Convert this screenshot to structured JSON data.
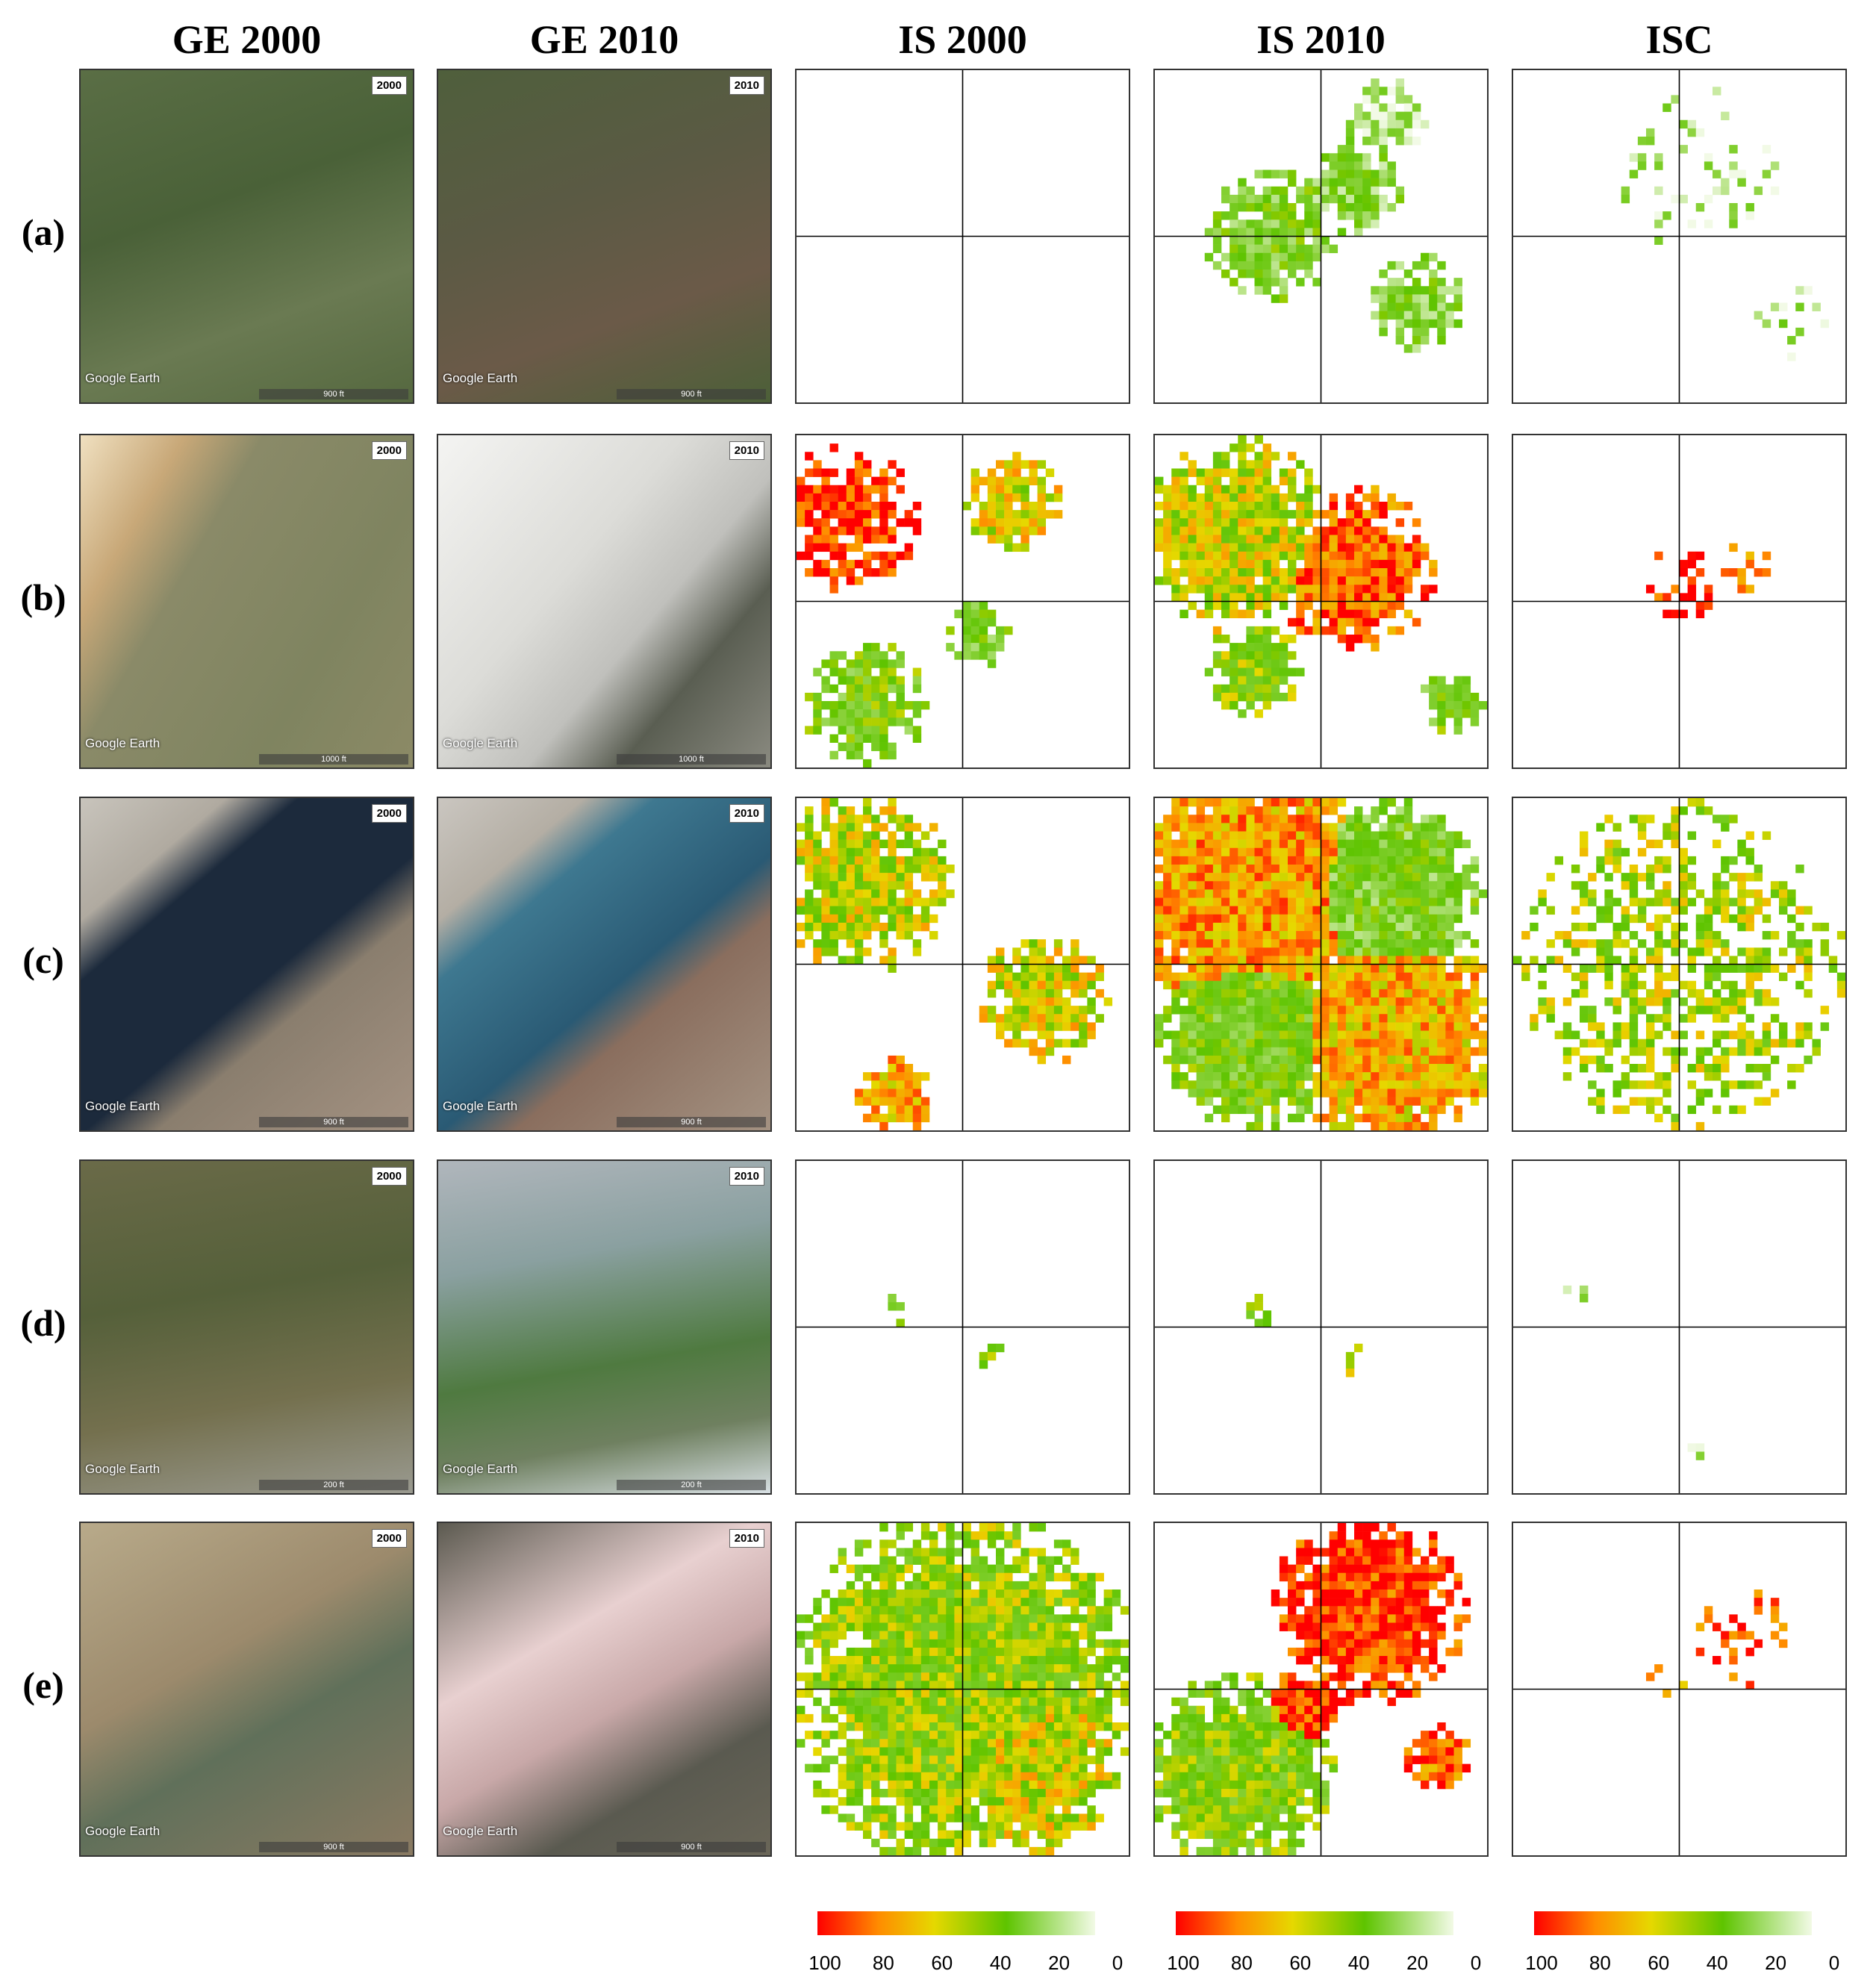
{
  "header": {
    "columns": [
      "GE 2000",
      "GE 2010",
      "IS 2000",
      "IS 2010",
      "ISC"
    ]
  },
  "rows": [
    {
      "label": "(a)",
      "ge2000": {
        "year": "2000",
        "brand": "Google Earth",
        "scale": "900 ft"
      },
      "ge2010": {
        "year": "2010",
        "brand": "Google Earth",
        "scale": "900 ft"
      }
    },
    {
      "label": "(b)",
      "ge2000": {
        "year": "2000",
        "brand": "Google Earth",
        "scale": "1000 ft"
      },
      "ge2010": {
        "year": "2010",
        "brand": "Google Earth",
        "scale": "1000 ft"
      }
    },
    {
      "label": "(c)",
      "ge2000": {
        "year": "2000",
        "brand": "Google Earth",
        "scale": "900 ft"
      },
      "ge2010": {
        "year": "2010",
        "brand": "Google Earth",
        "scale": "900 ft"
      }
    },
    {
      "label": "(d)",
      "ge2000": {
        "year": "2000",
        "brand": "Google Earth",
        "scale": "200 ft"
      },
      "ge2010": {
        "year": "2010",
        "brand": "Google Earth",
        "scale": "200 ft"
      }
    },
    {
      "label": "(e)",
      "ge2000": {
        "year": "2000",
        "brand": "Google Earth",
        "scale": "900 ft"
      },
      "ge2010": {
        "year": "2010",
        "brand": "Google Earth",
        "scale": "900 ft"
      }
    }
  ],
  "colorbars": [
    {
      "ticks": [
        100,
        80,
        60,
        40,
        20,
        0
      ]
    },
    {
      "ticks": [
        100,
        80,
        60,
        40,
        20,
        0
      ]
    },
    {
      "ticks": [
        100,
        80,
        60,
        40,
        20,
        0
      ]
    }
  ]
}
